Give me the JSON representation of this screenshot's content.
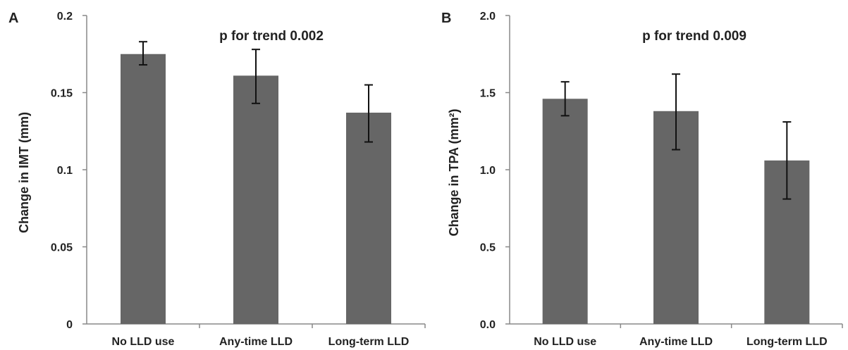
{
  "chart_data": [
    {
      "panel": "A",
      "type": "bar",
      "categories": [
        "No LLD use",
        "Any-time LLD",
        "Long-term LLD"
      ],
      "values": [
        0.175,
        0.161,
        0.137
      ],
      "error_low": [
        0.168,
        0.143,
        0.118
      ],
      "error_high": [
        0.183,
        0.178,
        0.155
      ],
      "ylabel": "Change in IMT (mm)",
      "annotation": "p for trend 0.002",
      "yticks": [
        "0",
        "0.05",
        "0.1",
        "0.15",
        "0.2"
      ],
      "ylim": [
        0,
        0.2
      ],
      "bar_color": "#666666"
    },
    {
      "panel": "B",
      "type": "bar",
      "categories": [
        "No LLD use",
        "Any-time LLD",
        "Long-term LLD"
      ],
      "values": [
        1.46,
        1.38,
        1.06
      ],
      "error_low": [
        1.35,
        1.13,
        0.81
      ],
      "error_high": [
        1.57,
        1.62,
        1.31
      ],
      "ylabel": "Change in TPA (mm²)",
      "annotation": "p for trend 0.009",
      "yticks": [
        "0.0",
        "0.5",
        "1.0",
        "1.5",
        "2.0"
      ],
      "ylim": [
        0,
        2.0
      ],
      "bar_color": "#666666"
    }
  ]
}
